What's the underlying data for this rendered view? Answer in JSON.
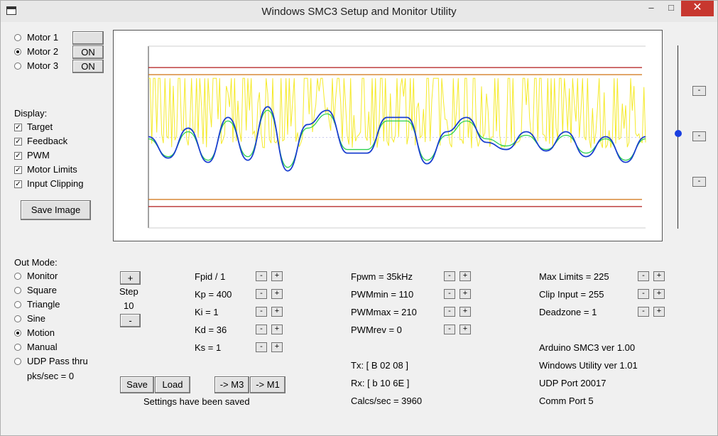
{
  "window": {
    "title": "Windows SMC3 Setup and Monitor Utility",
    "minimize": "–",
    "maximize": "□",
    "close": "✕"
  },
  "motors": [
    {
      "label": "Motor 1",
      "selected": false,
      "state": ""
    },
    {
      "label": "Motor 2",
      "selected": true,
      "state": "ON"
    },
    {
      "label": "Motor 3",
      "selected": false,
      "state": "ON"
    }
  ],
  "display": {
    "heading": "Display:",
    "items": [
      {
        "label": "Target",
        "checked": true
      },
      {
        "label": "Feedback",
        "checked": true
      },
      {
        "label": "PWM",
        "checked": true
      },
      {
        "label": "Motor Limits",
        "checked": true
      },
      {
        "label": "Input Clipping",
        "checked": true
      }
    ],
    "save_image": "Save Image"
  },
  "out_mode": {
    "heading": "Out Mode:",
    "items": [
      {
        "label": "Monitor",
        "selected": false
      },
      {
        "label": "Square",
        "selected": false
      },
      {
        "label": "Triangle",
        "selected": false
      },
      {
        "label": "Sine",
        "selected": false
      },
      {
        "label": "Motion",
        "selected": true
      },
      {
        "label": "Manual",
        "selected": false
      },
      {
        "label": "UDP Pass thru",
        "selected": false
      }
    ],
    "pks": "pks/sec = 0"
  },
  "step": {
    "plus": "+",
    "label": "Step",
    "value": "10",
    "minus": "-"
  },
  "pid": [
    "Fpid / 1",
    "Kp = 400",
    "Ki = 1",
    "Kd = 36",
    "Ks = 1"
  ],
  "pwm": [
    "Fpwm = 35kHz",
    "PWMmin = 110",
    "PWMmax = 210",
    "PWMrev = 0"
  ],
  "limits": [
    "Max Limits = 225",
    "Clip Input = 255",
    "Deadzone = 1"
  ],
  "adjust": {
    "minus": "-",
    "plus": "+"
  },
  "side_buttons": [
    "-",
    "-",
    "-"
  ],
  "actions": {
    "save": "Save",
    "load": "Load",
    "to_m3": "-> M3",
    "to_m1": "-> M1",
    "status": "Settings have been saved"
  },
  "comms": {
    "tx": "Tx: [ B 02 08 ]",
    "rx": "Rx: [ b 10 6E ]",
    "calcs": "Calcs/sec = 3960"
  },
  "info": [
    "Arduino SMC3 ver 1.00",
    "Windows Utility ver 1.01",
    "UDP Port 20017",
    "Comm Port 5"
  ],
  "chart_data": {
    "type": "line",
    "xlim": [
      0,
      100
    ],
    "ylim": [
      0,
      255
    ],
    "grid": false,
    "limit_lines": [
      {
        "value": 225,
        "color": "#b01818"
      },
      {
        "value": 215,
        "color": "#d07010"
      },
      {
        "value": 40,
        "color": "#d07010"
      },
      {
        "value": 30,
        "color": "#b01818"
      }
    ],
    "series": [
      {
        "color": "#2bd24f",
        "x": [
          0,
          4,
          8,
          12,
          16,
          20,
          24,
          28,
          32,
          36,
          40,
          44,
          48,
          52,
          56,
          60,
          64,
          68,
          72,
          76,
          80,
          84,
          88,
          92,
          96,
          100
        ],
        "y": [
          125,
          100,
          135,
          95,
          150,
          100,
          165,
          85,
          140,
          160,
          110,
          110,
          150,
          150,
          95,
          130,
          150,
          125,
          115,
          130,
          110,
          130,
          105,
          125,
          95,
          125
        ]
      },
      {
        "color": "#1a3fd0",
        "x": [
          0,
          4,
          8,
          12,
          16,
          20,
          24,
          28,
          32,
          36,
          40,
          44,
          48,
          52,
          56,
          60,
          64,
          68,
          72,
          76,
          80,
          84,
          88,
          92,
          96,
          100
        ],
        "y": [
          128,
          98,
          140,
          92,
          155,
          95,
          170,
          80,
          145,
          165,
          105,
          105,
          155,
          155,
          90,
          135,
          155,
          120,
          110,
          135,
          108,
          135,
          100,
          128,
          92,
          128
        ]
      }
    ],
    "pwm": {
      "color": "#f5ea2a",
      "low": 112,
      "high": 210
    }
  }
}
